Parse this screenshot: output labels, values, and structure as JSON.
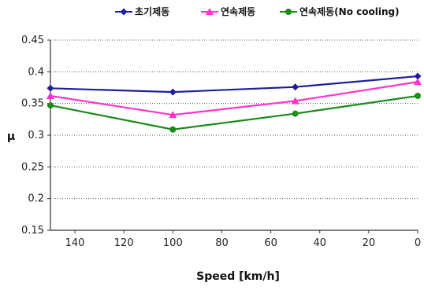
{
  "chart_data": {
    "type": "line",
    "x": [
      150,
      100,
      50,
      0
    ],
    "series": [
      {
        "name": "초기제동",
        "values": [
          0.374,
          0.368,
          0.376,
          0.393
        ],
        "color": "#1f1f9a",
        "marker": "diamond"
      },
      {
        "name": "연속제동",
        "values": [
          0.362,
          0.332,
          0.354,
          0.384
        ],
        "color": "#ff33cc",
        "marker": "triangle"
      },
      {
        "name": "연속제동(No cooling)",
        "values": [
          0.347,
          0.309,
          0.334,
          0.362
        ],
        "color": "#1a8c1a",
        "marker": "circle"
      }
    ],
    "xlabel": "Speed [km/h]",
    "ylabel": "μ",
    "xlim": [
      150,
      0
    ],
    "x_reversed": true,
    "ylim": [
      0.15,
      0.45
    ],
    "x_ticks": [
      140,
      120,
      100,
      80,
      60,
      40,
      20,
      0
    ],
    "y_ticks": [
      0.15,
      0.2,
      0.25,
      0.3,
      0.35,
      0.4,
      0.45
    ],
    "y_tick_labels": [
      "0.15",
      "0.2",
      "0.25",
      "0.3",
      "0.35",
      "0.4",
      "0.45"
    ],
    "grid": "horizontal dotted",
    "legend_position": "top"
  }
}
